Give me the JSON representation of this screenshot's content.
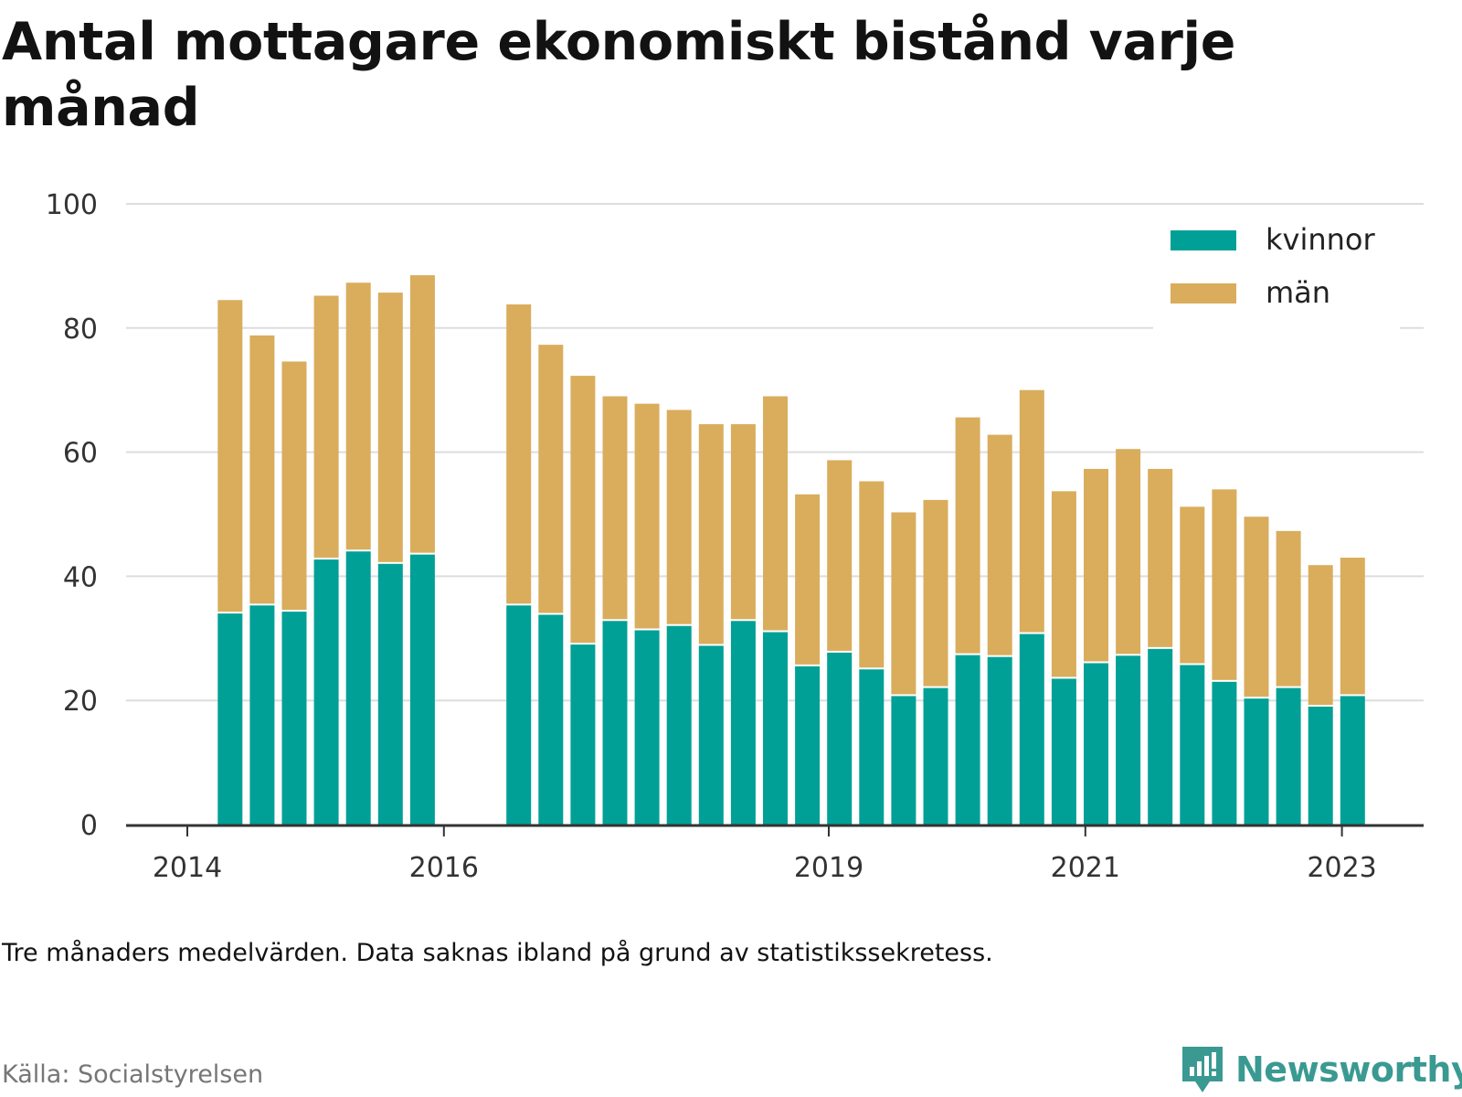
{
  "header": {
    "title": "Antal mottagare ekonomiskt bistånd varje månad"
  },
  "footer": {
    "note": "Tre månaders medelvärden. Data saknas ibland på grund av statistikssekretess.",
    "source": "Källa: Socialstyrelsen",
    "brand": "Newsworthy"
  },
  "colors": {
    "kvinnor": "#00a096",
    "man": "#d9ad5c",
    "grid": "#dddddd",
    "axis": "#333333",
    "brand": "#3a9a92"
  },
  "chart_data": {
    "type": "bar",
    "stacked": true,
    "title": "Antal mottagare ekonomiskt bistånd varje månad",
    "xlabel": "",
    "ylabel": "",
    "ylim": [
      0,
      100
    ],
    "yticks": [
      0,
      20,
      40,
      60,
      80,
      100
    ],
    "xticks": [
      "2014",
      "2016",
      "2019",
      "2021",
      "2023"
    ],
    "grid": true,
    "legend_position": "top-right",
    "x": [
      "2014-05",
      "2014-08",
      "2014-11",
      "2015-02",
      "2015-05",
      "2015-08",
      "2015-11",
      "2016-08",
      "2016-11",
      "2017-02",
      "2017-05",
      "2017-08",
      "2017-11",
      "2018-02",
      "2018-05",
      "2018-08",
      "2018-11",
      "2019-02",
      "2019-05",
      "2019-08",
      "2019-11",
      "2020-02",
      "2020-05",
      "2020-08",
      "2020-11",
      "2021-02",
      "2021-05",
      "2021-08",
      "2021-11",
      "2022-02",
      "2022-05",
      "2022-08",
      "2022-11",
      "2023-02"
    ],
    "series": [
      {
        "name": "kvinnor",
        "values": [
          34,
          35.3,
          34.3,
          42.7,
          44,
          42,
          43.5,
          35.3,
          33.8,
          29,
          32.8,
          31.3,
          32,
          28.8,
          32.8,
          31,
          25.5,
          27.7,
          25,
          20.7,
          22,
          27.3,
          27,
          30.7,
          23.5,
          26,
          27.2,
          28.3,
          25.7,
          23,
          20.3,
          22,
          19,
          20.7
        ]
      },
      {
        "name": "män",
        "values": [
          50.5,
          43.5,
          40.3,
          42.5,
          43.3,
          43.7,
          45,
          48.5,
          43.5,
          43.3,
          36.2,
          36.5,
          34.8,
          35.7,
          31.7,
          38,
          27.7,
          31,
          30.3,
          29.6,
          30.3,
          38.3,
          35.8,
          39.3,
          30.2,
          31.3,
          33.3,
          29,
          25.5,
          31,
          29.3,
          25.3,
          22.8,
          22.3
        ]
      }
    ]
  }
}
